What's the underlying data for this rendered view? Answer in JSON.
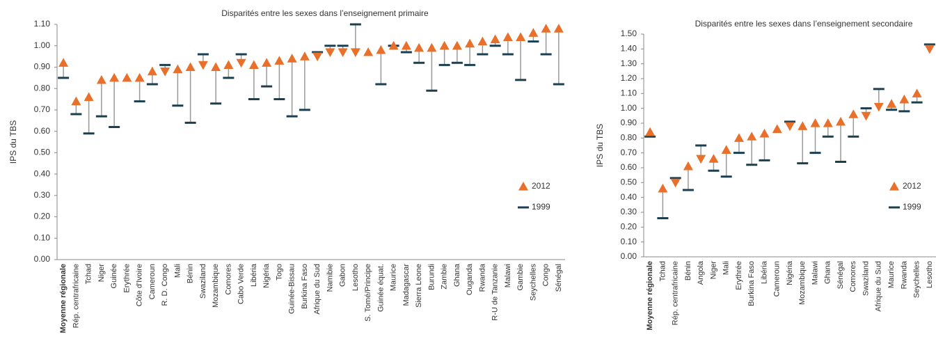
{
  "chart_data": [
    {
      "type": "dumbbell",
      "title": "Disparités entre les sexes dans l’enseignement primaire",
      "y_label": "IPS du TBS",
      "legend_position": "right",
      "categories": [
        "Moyenne régionale",
        "Rép. centrafricaine",
        "Tchad",
        "Niger",
        "Guinée",
        "Erythrée",
        "Côte d'Ivoire",
        "Cameroun",
        "R. D. Congo",
        "Mali",
        "Bénin",
        "Swaziland",
        "Mozambique",
        "Comores",
        "Cabo Verde",
        "Libéria",
        "Nigéria",
        "Togo",
        "Guinée-Bissau",
        "Burkina Faso",
        "Afrique du Sud",
        "Namibie",
        "Gabon",
        "Lesotho",
        "S. Tomé/Principe",
        "Guinée équat.",
        "Maurice",
        "Madagascar",
        "Sierra Leone",
        "Burundi",
        "Zambie",
        "Ghana",
        "Ouganda",
        "Rwanda",
        "R-U de Tanzanie",
        "Malawi",
        "Gambie",
        "Seychelles",
        "Congo",
        "Sénégal"
      ],
      "series": [
        {
          "name": "2012",
          "color": "#e8702a",
          "values": [
            0.92,
            0.74,
            0.76,
            0.84,
            0.85,
            0.85,
            0.85,
            0.88,
            0.88,
            0.89,
            0.9,
            0.91,
            0.9,
            0.91,
            0.92,
            0.91,
            0.92,
            0.93,
            0.94,
            0.95,
            0.95,
            0.97,
            0.97,
            0.97,
            0.97,
            0.98,
            1.0,
            1.0,
            0.99,
            0.99,
            1.0,
            1.0,
            1.01,
            1.02,
            1.03,
            1.04,
            1.04,
            1.06,
            1.08,
            1.08
          ]
        },
        {
          "name": "1999",
          "color": "#1b3f4f",
          "values": [
            0.85,
            0.68,
            0.59,
            0.67,
            0.62,
            null,
            0.74,
            0.82,
            0.91,
            0.72,
            0.64,
            0.96,
            0.73,
            0.85,
            0.96,
            0.75,
            0.81,
            0.75,
            0.67,
            0.7,
            0.97,
            1.0,
            1.0,
            1.1,
            null,
            0.82,
            1.0,
            0.97,
            0.92,
            0.79,
            0.91,
            0.92,
            0.91,
            0.96,
            1.0,
            0.96,
            0.84,
            1.02,
            0.96,
            0.82
          ]
        }
      ],
      "ylim": [
        0,
        1.1
      ],
      "yticks": [
        {
          "value": 0,
          "label": "0.00"
        },
        {
          "value": 0.1,
          "label": "0.10"
        },
        {
          "value": 0.2,
          "label": "0.20"
        },
        {
          "value": 0.3,
          "label": "0.30"
        },
        {
          "value": 0.4,
          "label": "0.40"
        },
        {
          "value": 0.5,
          "label": "0.50"
        },
        {
          "value": 0.6,
          "label": "0.60"
        },
        {
          "value": 0.7,
          "label": "0.70"
        },
        {
          "value": 0.8,
          "label": "0.80"
        },
        {
          "value": 0.9,
          "label": "0.90"
        },
        {
          "value": 1.0,
          "label": "1.00"
        },
        {
          "value": 1.1,
          "label": "1.10"
        }
      ]
    },
    {
      "type": "dumbbell",
      "title": "Disparités entre les sexes dans l’enseignement secondaire",
      "y_label": "IPS du TBS",
      "legend_position": "right",
      "categories": [
        "Moyenne régionale",
        "Tchad",
        "Rép. centrafricaine",
        "Bénin",
        "Angola",
        "Niger",
        "Mali",
        "Erythrée",
        "Burkina Faso",
        "Libéria",
        "Cameroun",
        "Nigéria",
        "Mozambique",
        "Malawi",
        "Ghana",
        "Sénégal",
        "Comores",
        "Swaziland",
        "Afrique du Sud",
        "Maurice",
        "Rwanda",
        "Seychelles",
        "Lesotho"
      ],
      "series": [
        {
          "name": "2012",
          "color": "#e8702a",
          "values": [
            0.84,
            0.46,
            0.5,
            0.61,
            0.66,
            0.66,
            0.72,
            0.8,
            0.81,
            0.83,
            0.86,
            0.88,
            0.88,
            0.9,
            0.9,
            0.91,
            0.96,
            0.95,
            1.01,
            1.03,
            1.06,
            1.1,
            1.4
          ]
        },
        {
          "name": "1999",
          "color": "#1b3f4f",
          "values": [
            0.81,
            0.26,
            0.53,
            0.45,
            0.75,
            0.58,
            0.54,
            0.7,
            0.62,
            0.65,
            null,
            0.91,
            0.63,
            0.7,
            0.81,
            0.64,
            0.81,
            1.0,
            1.13,
            0.99,
            0.98,
            1.04,
            1.43
          ]
        }
      ],
      "ylim": [
        0,
        1.5
      ],
      "yticks": [
        {
          "value": 0,
          "label": "0.00"
        },
        {
          "value": 0.1,
          "label": "0.10"
        },
        {
          "value": 0.2,
          "label": "0.20"
        },
        {
          "value": 0.3,
          "label": "0.30"
        },
        {
          "value": 0.4,
          "label": "0.40"
        },
        {
          "value": 0.5,
          "label": "0.50"
        },
        {
          "value": 0.6,
          "label": "0.60"
        },
        {
          "value": 0.7,
          "label": "0.70"
        },
        {
          "value": 0.8,
          "label": "0.80"
        },
        {
          "value": 0.9,
          "label": "0.90"
        },
        {
          "value": 1.0,
          "label": "1.00"
        },
        {
          "value": 1.1,
          "label": "1.10"
        },
        {
          "value": 1.2,
          "label": "1.20"
        },
        {
          "value": 1.3,
          "label": "1.30"
        },
        {
          "value": 1.4,
          "label": "1.40"
        },
        {
          "value": 1.5,
          "label": "1.50"
        }
      ]
    }
  ]
}
